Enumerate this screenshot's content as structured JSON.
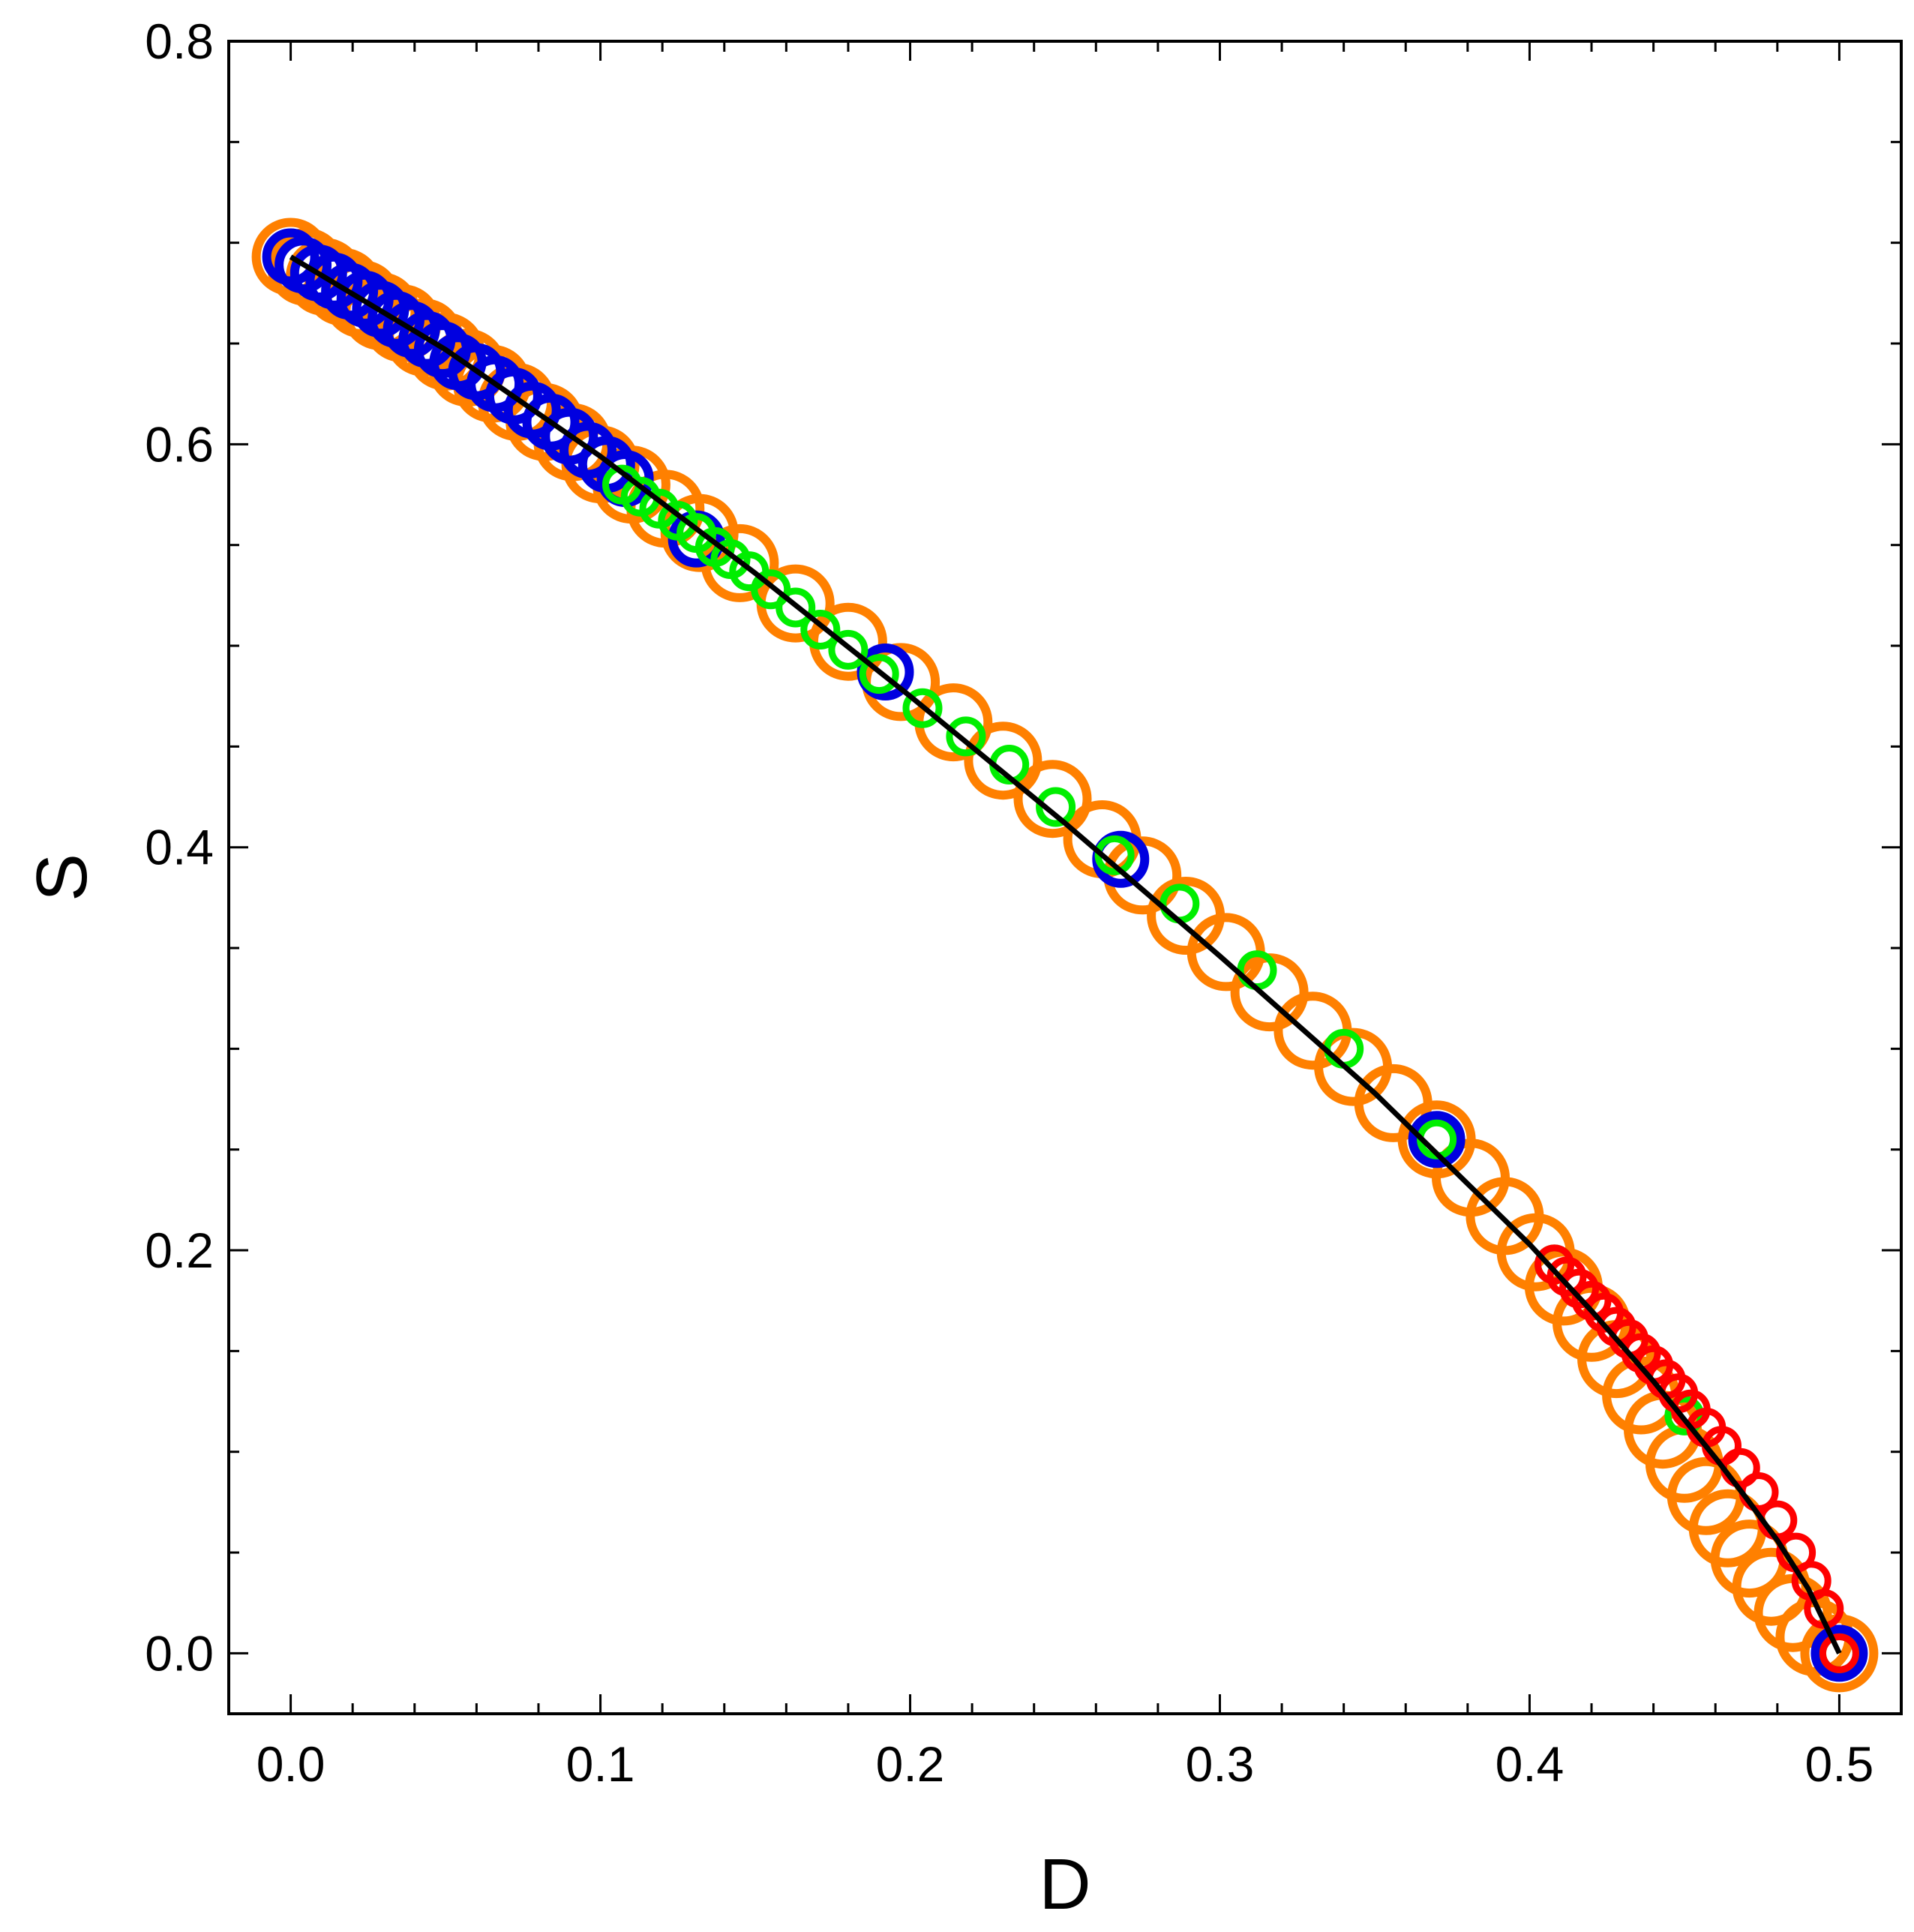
{
  "chart_data": {
    "type": "scatter",
    "title": "",
    "xlabel": "D",
    "ylabel": "S",
    "xlim": [
      -0.02,
      0.52
    ],
    "ylim": [
      -0.03,
      0.8
    ],
    "x_ticks": [
      "0.0",
      "0.1",
      "0.2",
      "0.3",
      "0.4",
      "0.5"
    ],
    "y_ticks": [
      "0.0",
      "0.2",
      "0.4",
      "0.6",
      "0.8"
    ],
    "grid": false,
    "legend": "none",
    "series": [
      {
        "color": "#ff8000",
        "marker": "open-circle-large",
        "points": [
          [
            0.0,
            0.693
          ],
          [
            0.005,
            0.688
          ],
          [
            0.011,
            0.683
          ],
          [
            0.017,
            0.678
          ],
          [
            0.023,
            0.672
          ],
          [
            0.029,
            0.666
          ],
          [
            0.036,
            0.66
          ],
          [
            0.043,
            0.653
          ],
          [
            0.05,
            0.646
          ],
          [
            0.057,
            0.638
          ],
          [
            0.065,
            0.63
          ],
          [
            0.073,
            0.621
          ],
          [
            0.082,
            0.611
          ],
          [
            0.091,
            0.601
          ],
          [
            0.1,
            0.59
          ],
          [
            0.11,
            0.58
          ],
          [
            0.121,
            0.568
          ],
          [
            0.132,
            0.556
          ],
          [
            0.145,
            0.541
          ],
          [
            0.163,
            0.521
          ],
          [
            0.18,
            0.502
          ],
          [
            0.197,
            0.482
          ],
          [
            0.214,
            0.462
          ],
          [
            0.23,
            0.443
          ],
          [
            0.246,
            0.424
          ],
          [
            0.262,
            0.404
          ],
          [
            0.275,
            0.386
          ],
          [
            0.289,
            0.366
          ],
          [
            0.302,
            0.348
          ],
          [
            0.316,
            0.328
          ],
          [
            0.33,
            0.309
          ],
          [
            0.343,
            0.291
          ],
          [
            0.356,
            0.273
          ],
          [
            0.37,
            0.255
          ],
          [
            0.381,
            0.236
          ],
          [
            0.392,
            0.217
          ],
          [
            0.402,
            0.199
          ],
          [
            0.411,
            0.182
          ],
          [
            0.42,
            0.164
          ],
          [
            0.428,
            0.146
          ],
          [
            0.436,
            0.128
          ],
          [
            0.443,
            0.111
          ],
          [
            0.45,
            0.094
          ],
          [
            0.457,
            0.078
          ],
          [
            0.464,
            0.062
          ],
          [
            0.471,
            0.047
          ],
          [
            0.478,
            0.033
          ],
          [
            0.485,
            0.02
          ],
          [
            0.492,
            0.008
          ],
          [
            0.5,
            0.0
          ]
        ]
      },
      {
        "color": "#0000e0",
        "marker": "open-circle-medium",
        "points": [
          [
            0.0,
            0.693
          ],
          [
            0.004,
            0.689
          ],
          [
            0.009,
            0.685
          ],
          [
            0.014,
            0.681
          ],
          [
            0.019,
            0.676
          ],
          [
            0.024,
            0.672
          ],
          [
            0.029,
            0.667
          ],
          [
            0.034,
            0.662
          ],
          [
            0.039,
            0.657
          ],
          [
            0.044,
            0.652
          ],
          [
            0.049,
            0.647
          ],
          [
            0.054,
            0.641
          ],
          [
            0.06,
            0.636
          ],
          [
            0.066,
            0.63
          ],
          [
            0.072,
            0.624
          ],
          [
            0.078,
            0.617
          ],
          [
            0.084,
            0.611
          ],
          [
            0.09,
            0.604
          ],
          [
            0.096,
            0.597
          ],
          [
            0.102,
            0.59
          ],
          [
            0.108,
            0.583
          ],
          [
            0.131,
            0.553
          ],
          [
            0.192,
            0.487
          ],
          [
            0.268,
            0.394
          ],
          [
            0.37,
            0.255
          ],
          [
            0.5,
            0.0
          ]
        ]
      },
      {
        "color": "#00ee00",
        "marker": "open-circle-small",
        "points": [
          [
            0.107,
            0.58
          ],
          [
            0.113,
            0.574
          ],
          [
            0.119,
            0.568
          ],
          [
            0.125,
            0.562
          ],
          [
            0.131,
            0.556
          ],
          [
            0.137,
            0.549
          ],
          [
            0.142,
            0.543
          ],
          [
            0.148,
            0.537
          ],
          [
            0.155,
            0.528
          ],
          [
            0.163,
            0.519
          ],
          [
            0.171,
            0.508
          ],
          [
            0.18,
            0.498
          ],
          [
            0.19,
            0.486
          ],
          [
            0.204,
            0.469
          ],
          [
            0.218,
            0.455
          ],
          [
            0.232,
            0.441
          ],
          [
            0.247,
            0.42
          ],
          [
            0.266,
            0.396
          ],
          [
            0.287,
            0.372
          ],
          [
            0.312,
            0.339
          ],
          [
            0.34,
            0.3
          ],
          [
            0.37,
            0.255
          ],
          [
            0.408,
            0.193
          ],
          [
            0.45,
            0.118
          ],
          [
            0.5,
            0.0
          ]
        ]
      },
      {
        "color": "#ff0000",
        "marker": "open-circle-small",
        "points": [
          [
            0.408,
            0.193
          ],
          [
            0.412,
            0.187
          ],
          [
            0.416,
            0.181
          ],
          [
            0.42,
            0.175
          ],
          [
            0.424,
            0.169
          ],
          [
            0.428,
            0.162
          ],
          [
            0.432,
            0.156
          ],
          [
            0.436,
            0.149
          ],
          [
            0.44,
            0.143
          ],
          [
            0.444,
            0.136
          ],
          [
            0.448,
            0.129
          ],
          [
            0.452,
            0.121
          ],
          [
            0.457,
            0.112
          ],
          [
            0.462,
            0.103
          ],
          [
            0.468,
            0.092
          ],
          [
            0.474,
            0.08
          ],
          [
            0.48,
            0.066
          ],
          [
            0.486,
            0.05
          ],
          [
            0.491,
            0.036
          ],
          [
            0.495,
            0.022
          ],
          [
            0.5,
            0.0
          ]
        ]
      },
      {
        "color": "#000000",
        "marker": "line",
        "points": [
          [
            0.0,
            0.693
          ],
          [
            0.05,
            0.647
          ],
          [
            0.1,
            0.594
          ],
          [
            0.15,
            0.536
          ],
          [
            0.2,
            0.475
          ],
          [
            0.25,
            0.412
          ],
          [
            0.3,
            0.346
          ],
          [
            0.35,
            0.278
          ],
          [
            0.4,
            0.203
          ],
          [
            0.42,
            0.17
          ],
          [
            0.44,
            0.135
          ],
          [
            0.46,
            0.097
          ],
          [
            0.47,
            0.077
          ],
          [
            0.48,
            0.056
          ],
          [
            0.49,
            0.032
          ],
          [
            0.5,
            0.0
          ]
        ]
      }
    ]
  }
}
